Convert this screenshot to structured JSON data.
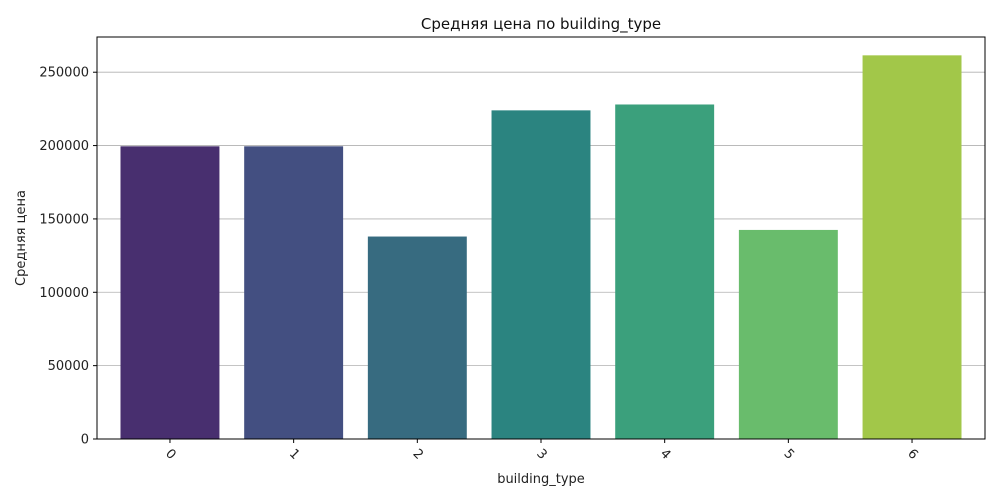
{
  "chart_data": {
    "type": "bar",
    "title": "Средняя цена по building_type",
    "xlabel": "building_type",
    "ylabel": "Средняя цена",
    "categories": [
      "0",
      "1",
      "2",
      "3",
      "4",
      "5",
      "6"
    ],
    "values": [
      199500,
      199500,
      138000,
      224000,
      228000,
      142500,
      261500
    ],
    "ylim": [
      0,
      274000
    ],
    "yticks": [
      0,
      50000,
      100000,
      150000,
      200000,
      250000
    ],
    "ytick_labels": [
      "0",
      "50000",
      "100000",
      "150000",
      "200000",
      "250000"
    ],
    "grid": "y",
    "bar_colors": [
      "#482f6f",
      "#434f81",
      "#376b80",
      "#2b8480",
      "#3ba07c",
      "#69bc6c",
      "#a2c749"
    ]
  }
}
